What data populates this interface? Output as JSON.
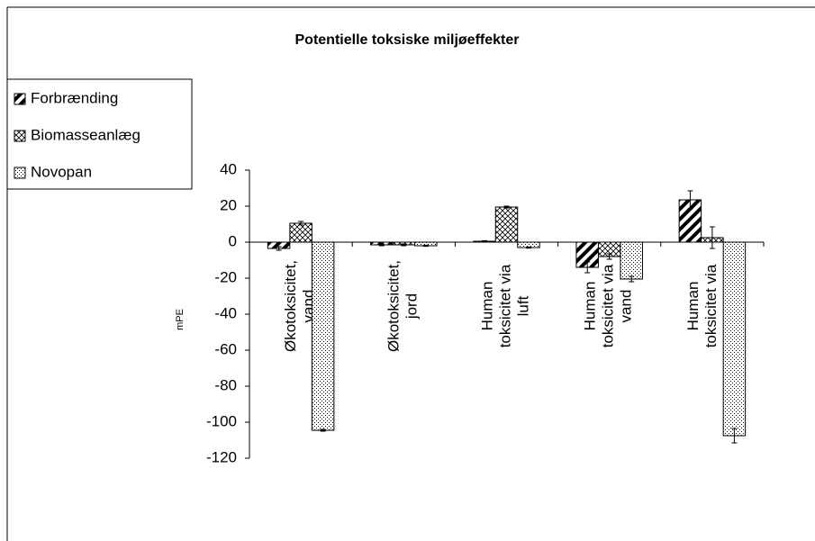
{
  "chart_data": {
    "type": "bar",
    "title": "Potentielle toksiske miljøeffekter",
    "y_label": "mPE",
    "categories": [
      "Økotoksicitet, vand",
      "Økotoksicitet, jord",
      "Human toksicitet via luft",
      "Human toksicitet via vand",
      "Human toksicitet via jord"
    ],
    "series": [
      {
        "name": "Forbrænding",
        "color": "#000000",
        "values": [
          -3.5,
          -1.5,
          0.5,
          -14,
          23.5
        ],
        "errors": [
          1,
          0.5,
          0.3,
          3,
          5
        ]
      },
      {
        "name": "Biomasseanlæg",
        "color": "#000000",
        "values": [
          10.5,
          -1.5,
          19.5,
          -8,
          2.5
        ],
        "errors": [
          1,
          0.5,
          0.5,
          1.5,
          6
        ]
      },
      {
        "name": "Novopan",
        "color": "#000000",
        "values": [
          -104.5,
          -2,
          -3,
          -20.5,
          -107.5
        ],
        "errors": [
          0.5,
          0.3,
          0.3,
          1.5,
          4
        ]
      }
    ],
    "ylim": [
      -120,
      40
    ],
    "yticks": [
      40,
      20,
      0,
      -20,
      -40,
      -60,
      -80,
      -100,
      -120
    ],
    "grid": false,
    "legend": "left"
  }
}
